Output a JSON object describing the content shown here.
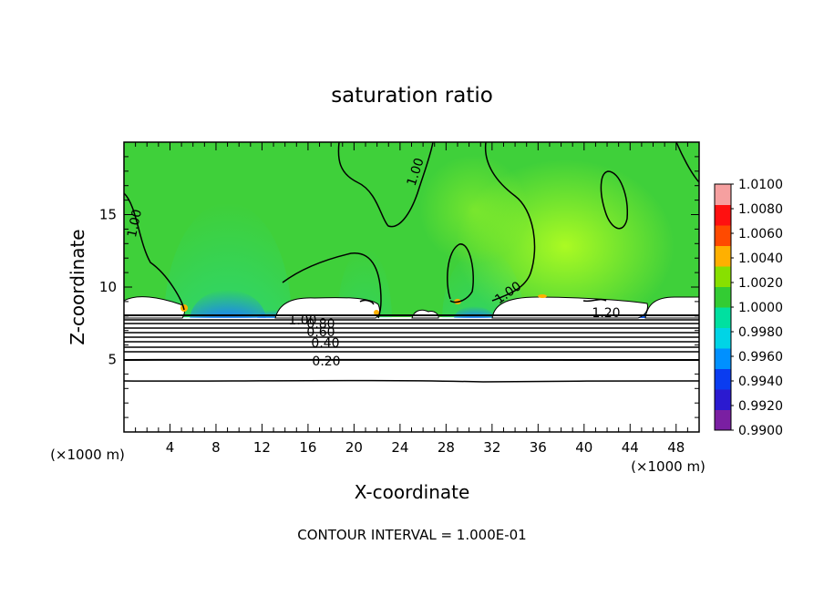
{
  "chart_data": {
    "type": "heatmap",
    "title": "saturation ratio",
    "xlabel": "X-coordinate",
    "ylabel": "Z-coordinate",
    "x_units": "(×1000 m)",
    "y_units": "(×1000 m)",
    "xlim": [
      0,
      50
    ],
    "ylim": [
      0,
      20
    ],
    "x_ticks": [
      4,
      8,
      12,
      16,
      20,
      24,
      28,
      32,
      36,
      40,
      44,
      48
    ],
    "y_ticks": [
      5,
      10,
      15
    ],
    "contour_interval_text": "CONTOUR INTERVAL = 1.000E-01",
    "contour_labels": [
      "1.00",
      "1.00",
      "1.00",
      "1.00",
      "1.20",
      "0.80",
      "0.60",
      "0.40",
      "0.20"
    ],
    "colorbar": {
      "min": 0.99,
      "max": 1.01,
      "ticks": [
        "1.0100",
        "1.0080",
        "1.0060",
        "1.0040",
        "1.0020",
        "1.0000",
        "0.9980",
        "0.9960",
        "0.9940",
        "0.9920",
        "0.9900"
      ],
      "colors": [
        "#7a1fa2",
        "#2b1ad0",
        "#0a3cf0",
        "#0090ff",
        "#00d4e6",
        "#00e0a0",
        "#33cc33",
        "#88e000",
        "#ffb000",
        "#ff4a00",
        "#ff1010",
        "#f6a0a0"
      ]
    }
  }
}
